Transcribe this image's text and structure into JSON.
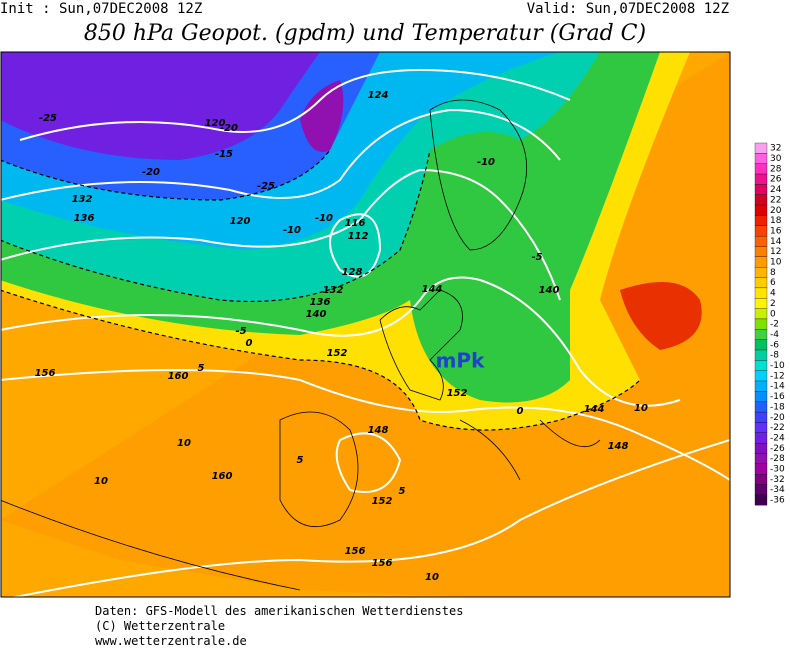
{
  "header": {
    "init": "Init : Sun,07DEC2008 12Z",
    "valid": "Valid: Sun,07DEC2008 12Z",
    "title": "850 hPa Geopot. (gpdm) und Temperatur (Grad C)"
  },
  "legend": {
    "entries": [
      {
        "value": 32,
        "color": "#f8a0f0"
      },
      {
        "value": 30,
        "color": "#ff60e0"
      },
      {
        "value": 28,
        "color": "#ff30c0"
      },
      {
        "value": 26,
        "color": "#f01090"
      },
      {
        "value": 24,
        "color": "#e00060"
      },
      {
        "value": 22,
        "color": "#d00020"
      },
      {
        "value": 20,
        "color": "#e00000"
      },
      {
        "value": 18,
        "color": "#f02000"
      },
      {
        "value": 16,
        "color": "#ff4000"
      },
      {
        "value": 14,
        "color": "#ff6000"
      },
      {
        "value": 12,
        "color": "#ff8000"
      },
      {
        "value": 10,
        "color": "#ff9a00"
      },
      {
        "value": 8,
        "color": "#ffb400"
      },
      {
        "value": 6,
        "color": "#ffcc00"
      },
      {
        "value": 4,
        "color": "#ffe400"
      },
      {
        "value": 2,
        "color": "#fff400"
      },
      {
        "value": 0,
        "color": "#c8f000"
      },
      {
        "value": -2,
        "color": "#80e000"
      },
      {
        "value": -4,
        "color": "#40d040"
      },
      {
        "value": -6,
        "color": "#00c060"
      },
      {
        "value": -8,
        "color": "#00d0a0"
      },
      {
        "value": -10,
        "color": "#00e0d0"
      },
      {
        "value": -12,
        "color": "#00d0ff"
      },
      {
        "value": -14,
        "color": "#00b0ff"
      },
      {
        "value": -16,
        "color": "#0090ff"
      },
      {
        "value": -18,
        "color": "#2060ff"
      },
      {
        "value": -20,
        "color": "#4040ff"
      },
      {
        "value": -22,
        "color": "#6030ff"
      },
      {
        "value": -24,
        "color": "#7020e0"
      },
      {
        "value": -26,
        "color": "#8010c0"
      },
      {
        "value": -28,
        "color": "#9010b0"
      },
      {
        "value": -30,
        "color": "#a000a0"
      },
      {
        "value": -32,
        "color": "#800080"
      },
      {
        "value": -34,
        "color": "#600070"
      },
      {
        "value": -36,
        "color": "#400050"
      }
    ]
  },
  "map": {
    "labels": [
      "mPk",
      "160",
      "160",
      "156",
      "156",
      "156",
      "152",
      "152",
      "152",
      "148",
      "148",
      "144",
      "144",
      "140",
      "140",
      "136",
      "136",
      "132",
      "132",
      "128",
      "124",
      "120",
      "120",
      "116",
      "112",
      "10",
      "10",
      "10",
      "10",
      "5",
      "5",
      "5",
      "0",
      "0",
      "-5",
      "-5",
      "-10",
      "-10",
      "-10",
      "-15",
      "-20",
      "-20",
      "-25",
      "-25"
    ]
  },
  "footer": [
    "Daten: GFS-Modell des amerikanischen Wetterdienstes",
    "(C) Wetterzentrale",
    "www.wetterzentrale.de"
  ]
}
